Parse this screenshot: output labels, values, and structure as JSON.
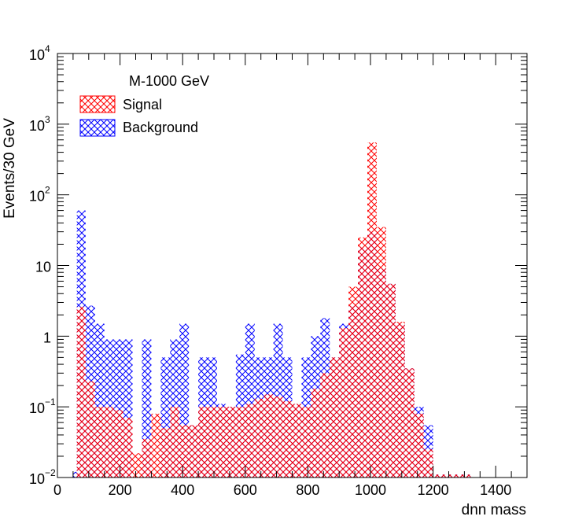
{
  "chart_data": {
    "type": "bar",
    "title": "",
    "xlabel": "dnn mass",
    "ylabel": "Events/30 GeV",
    "xlim": [
      0,
      1500
    ],
    "ylim": [
      0.01,
      10000
    ],
    "y_scale": "log",
    "bin_width": 30,
    "x_ticks": [
      {
        "value": 0,
        "label": "0"
      },
      {
        "value": 200,
        "label": "200"
      },
      {
        "value": 400,
        "label": "400"
      },
      {
        "value": 600,
        "label": "600"
      },
      {
        "value": 800,
        "label": "800"
      },
      {
        "value": 1000,
        "label": "1000"
      },
      {
        "value": 1200,
        "label": "1200"
      },
      {
        "value": 1400,
        "label": "1400"
      }
    ],
    "y_ticks": [
      {
        "value": 0.01,
        "base": "10",
        "exp": "−2"
      },
      {
        "value": 0.1,
        "base": "10",
        "exp": "−1"
      },
      {
        "value": 1,
        "base": "1",
        "exp": ""
      },
      {
        "value": 10,
        "base": "10",
        "exp": ""
      },
      {
        "value": 100,
        "base": "10",
        "exp": "2"
      },
      {
        "value": 1000,
        "base": "10",
        "exp": "3"
      },
      {
        "value": 10000,
        "base": "10",
        "exp": "4"
      }
    ],
    "legend": {
      "position": "top-left",
      "header": "M-1000 GeV",
      "entries": [
        {
          "label": "Signal",
          "color": "#ff0000"
        },
        {
          "label": "Background",
          "color": "#0000ff"
        }
      ]
    },
    "series": [
      {
        "name": "Background",
        "color": "#0000ff",
        "bins": [
          [
            50,
            0.012
          ],
          [
            62,
            60
          ],
          [
            90,
            2.7
          ],
          [
            120,
            1.5
          ],
          [
            150,
            0.9
          ],
          [
            180,
            0.9
          ],
          [
            210,
            0.9
          ],
          [
            270,
            0.9
          ],
          [
            330,
            0.5
          ],
          [
            360,
            0.9
          ],
          [
            390,
            1.5
          ],
          [
            420,
            0.055
          ],
          [
            450,
            0.5
          ],
          [
            480,
            0.5
          ],
          [
            510,
            0.11
          ],
          [
            540,
            0.1
          ],
          [
            570,
            0.55
          ],
          [
            600,
            1.5
          ],
          [
            630,
            0.5
          ],
          [
            660,
            0.5
          ],
          [
            690,
            1.5
          ],
          [
            720,
            0.5
          ],
          [
            750,
            0.11
          ],
          [
            780,
            0.5
          ],
          [
            810,
            1.0
          ],
          [
            840,
            1.8
          ],
          [
            870,
            0.5
          ],
          [
            900,
            1.5
          ],
          [
            930,
            2.7
          ],
          [
            960,
            18
          ],
          [
            990,
            30
          ],
          [
            1020,
            9
          ],
          [
            1050,
            5.5
          ],
          [
            1080,
            1.5
          ],
          [
            1110,
            0.35
          ],
          [
            1140,
            0.1
          ],
          [
            1170,
            0.055
          ],
          [
            1200,
            0.011
          ],
          [
            1230,
            0.011
          ],
          [
            1260,
            0.011
          ],
          [
            1290,
            0.011
          ]
        ]
      },
      {
        "name": "Signal",
        "color": "#ff0000",
        "bins": [
          [
            62,
            2.6
          ],
          [
            90,
            0.23
          ],
          [
            120,
            0.1
          ],
          [
            150,
            0.1
          ],
          [
            180,
            0.09
          ],
          [
            210,
            0.07
          ],
          [
            240,
            0.022
          ],
          [
            270,
            0.035
          ],
          [
            300,
            0.08
          ],
          [
            330,
            0.05
          ],
          [
            360,
            0.1
          ],
          [
            390,
            0.055
          ],
          [
            420,
            0.055
          ],
          [
            450,
            0.1
          ],
          [
            480,
            0.1
          ],
          [
            510,
            0.1
          ],
          [
            540,
            0.1
          ],
          [
            570,
            0.1
          ],
          [
            600,
            0.11
          ],
          [
            630,
            0.13
          ],
          [
            660,
            0.15
          ],
          [
            690,
            0.14
          ],
          [
            720,
            0.12
          ],
          [
            750,
            0.11
          ],
          [
            780,
            0.1
          ],
          [
            810,
            0.18
          ],
          [
            840,
            0.3
          ],
          [
            870,
            0.5
          ],
          [
            900,
            1.3
          ],
          [
            930,
            5
          ],
          [
            960,
            25
          ],
          [
            990,
            550
          ],
          [
            1020,
            35
          ],
          [
            1050,
            5.5
          ],
          [
            1080,
            1.6
          ],
          [
            1110,
            0.35
          ],
          [
            1140,
            0.08
          ],
          [
            1170,
            0.025
          ],
          [
            1200,
            0.011
          ],
          [
            1230,
            0.011
          ],
          [
            1260,
            0.011
          ],
          [
            1290,
            0.011
          ]
        ]
      }
    ]
  }
}
